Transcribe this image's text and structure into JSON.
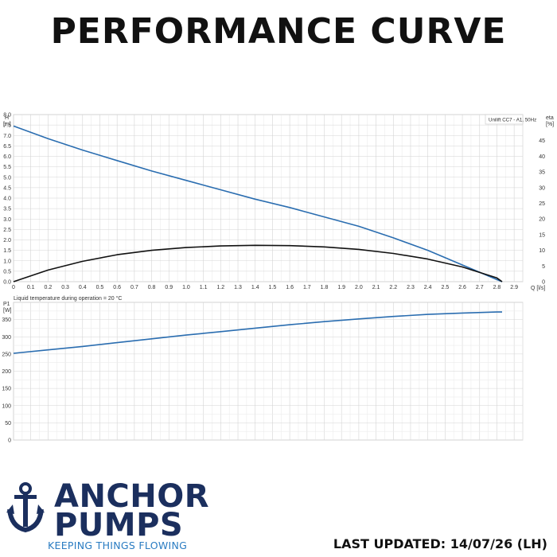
{
  "page": {
    "title": "PERFORMANCE CURVE",
    "last_updated": "LAST UPDATED: 14/07/26 (LH)"
  },
  "brand": {
    "line1": "ANCHOR",
    "line2": "PUMPS",
    "tagline": "KEEPING THINGS FLOWING",
    "color_primary": "#1b2f5e",
    "color_accent": "#2a7cc2"
  },
  "chart_data": [
    {
      "type": "line",
      "legend_text": "Unilift CC7 - A1, 50Hz",
      "legend_position": "top-right",
      "grid": true,
      "x_axis": {
        "label": "Q [l/s]",
        "range": [
          0,
          2.95
        ],
        "ticks": [
          "0",
          "0.1",
          "0.2",
          "0.3",
          "0.4",
          "0.5",
          "0.6",
          "0.7",
          "0.8",
          "0.9",
          "1.0",
          "1.1",
          "1.2",
          "1.3",
          "1.4",
          "1.5",
          "1.6",
          "1.7",
          "1.8",
          "1.9",
          "2.0",
          "2.1",
          "2.2",
          "2.3",
          "2.4",
          "2.5",
          "2.6",
          "2.7",
          "2.8",
          "2.9"
        ]
      },
      "y_axis_left": {
        "label": "H",
        "unit": "[m]",
        "range": [
          0,
          8.0
        ],
        "ticks": [
          "0.0",
          "0.5",
          "1.0",
          "1.5",
          "2.0",
          "2.5",
          "3.0",
          "3.5",
          "4.0",
          "4.5",
          "5.0",
          "5.5",
          "6.0",
          "6.5",
          "7.0",
          "7.5",
          "8.0"
        ]
      },
      "y_axis_right": {
        "label": "eta",
        "unit": "[%]",
        "range": [
          0,
          53.3
        ],
        "ticks": [
          "0",
          "5",
          "10",
          "15",
          "20",
          "25",
          "30",
          "35",
          "40",
          "45"
        ]
      },
      "series": [
        {
          "color": "#2a6db0",
          "axis": "left",
          "x": [
            0,
            0.2,
            0.4,
            0.6,
            0.8,
            1.0,
            1.2,
            1.4,
            1.6,
            1.8,
            2.0,
            2.2,
            2.4,
            2.6,
            2.8,
            2.83
          ],
          "y": [
            7.45,
            6.85,
            6.3,
            5.8,
            5.3,
            4.85,
            4.4,
            3.95,
            3.55,
            3.1,
            2.65,
            2.1,
            1.5,
            0.8,
            0.1,
            0.0
          ]
        },
        {
          "color": "#111111",
          "axis": "right",
          "x": [
            0,
            0.2,
            0.4,
            0.6,
            0.8,
            1.0,
            1.2,
            1.4,
            1.6,
            1.8,
            2.0,
            2.2,
            2.4,
            2.6,
            2.8,
            2.83
          ],
          "y": [
            0,
            3.7,
            6.5,
            8.6,
            10.0,
            10.9,
            11.4,
            11.6,
            11.5,
            11.1,
            10.3,
            9.0,
            7.2,
            4.7,
            1.2,
            0
          ]
        }
      ]
    },
    {
      "type": "line",
      "annotation": "Liquid temperature during operation = 20 °C",
      "grid": true,
      "x_axis": {
        "range": [
          0,
          2.95
        ]
      },
      "y_axis_left": {
        "label": "P1",
        "unit": "[W]",
        "range": [
          0,
          400
        ],
        "ticks": [
          "0",
          "50",
          "100",
          "150",
          "200",
          "250",
          "300",
          "350"
        ]
      },
      "series": [
        {
          "color": "#2a6db0",
          "x": [
            0,
            0.2,
            0.4,
            0.6,
            0.8,
            1.0,
            1.2,
            1.4,
            1.6,
            1.8,
            2.0,
            2.2,
            2.4,
            2.6,
            2.8,
            2.83
          ],
          "y": [
            252,
            262,
            272,
            283,
            294,
            305,
            315,
            325,
            335,
            344,
            352,
            359,
            365,
            369,
            372,
            372
          ]
        }
      ]
    }
  ]
}
